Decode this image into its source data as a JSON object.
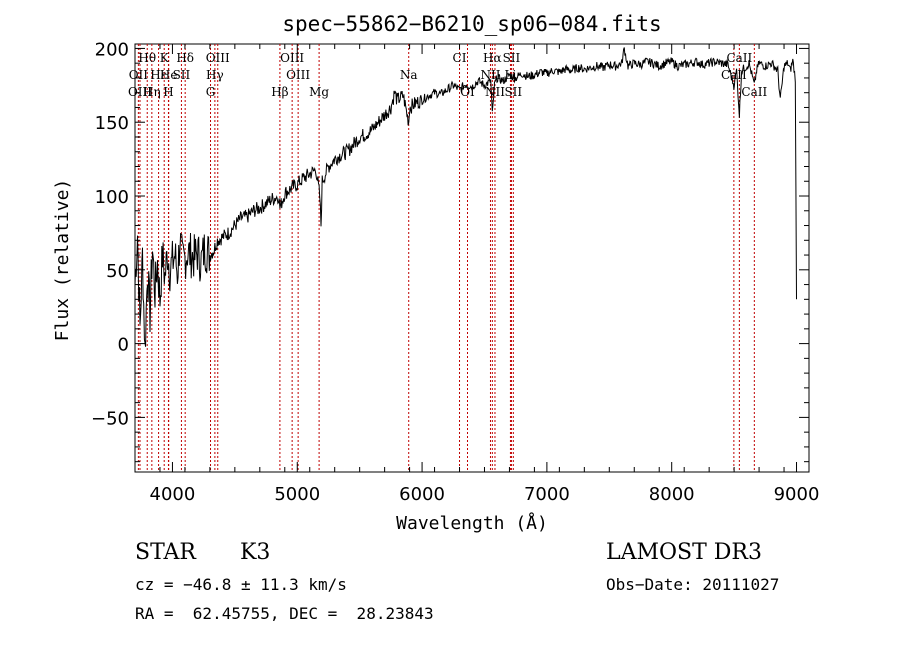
{
  "chart_data": {
    "type": "line",
    "title": "spec−55862−B6210_sp06−084.fits",
    "xlabel": "Wavelength (Å)",
    "ylabel": "Flux (relative)",
    "xlim": [
      3700,
      9100
    ],
    "ylim": [
      -87,
      203
    ],
    "xticks": [
      4000,
      5000,
      6000,
      7000,
      8000,
      9000
    ],
    "xtick_labels": [
      "4000",
      "5000",
      "6000",
      "7000",
      "8000",
      "9000"
    ],
    "yticks": [
      -50,
      0,
      50,
      100,
      150,
      200
    ],
    "ytick_labels": [
      "−50",
      "0",
      "50",
      "100",
      "150",
      "200"
    ],
    "series": [
      {
        "name": "flux",
        "x": [
          3700,
          3720,
          3740,
          3760,
          3780,
          3800,
          3820,
          3840,
          3860,
          3880,
          3900,
          3920,
          3940,
          3960,
          3980,
          4000,
          4020,
          4040,
          4060,
          4080,
          4100,
          4120,
          4150,
          4180,
          4200,
          4230,
          4260,
          4300,
          4330,
          4360,
          4400,
          4450,
          4500,
          4550,
          4600,
          4650,
          4700,
          4750,
          4800,
          4850,
          4861,
          4900,
          4950,
          5000,
          5050,
          5100,
          5150,
          5180,
          5190,
          5200,
          5250,
          5300,
          5350,
          5400,
          5450,
          5500,
          5550,
          5600,
          5650,
          5700,
          5750,
          5780,
          5800,
          5850,
          5893,
          5900,
          5950,
          6000,
          6050,
          6100,
          6150,
          6200,
          6250,
          6300,
          6350,
          6400,
          6450,
          6500,
          6550,
          6563,
          6580,
          6600,
          6650,
          6700,
          6750,
          6800,
          6850,
          6900,
          6950,
          7000,
          7050,
          7100,
          7150,
          7200,
          7250,
          7300,
          7350,
          7400,
          7450,
          7500,
          7550,
          7600,
          7620,
          7650,
          7700,
          7750,
          7800,
          7850,
          7900,
          7950,
          8000,
          8050,
          8100,
          8150,
          8200,
          8250,
          8300,
          8350,
          8400,
          8450,
          8498,
          8520,
          8542,
          8560,
          8600,
          8620,
          8662,
          8680,
          8700,
          8750,
          8800,
          8850,
          8870,
          8900,
          8930,
          8950,
          8970,
          8990,
          9000
        ],
        "y": [
          40,
          75,
          10,
          60,
          -5,
          50,
          20,
          65,
          35,
          55,
          30,
          60,
          45,
          62,
          50,
          55,
          60,
          48,
          70,
          55,
          58,
          62,
          60,
          58,
          62,
          55,
          65,
          60,
          63,
          70,
          72,
          75,
          80,
          85,
          86,
          90,
          92,
          95,
          98,
          100,
          92,
          102,
          105,
          108,
          112,
          115,
          118,
          100,
          80,
          110,
          120,
          125,
          128,
          130,
          135,
          140,
          142,
          145,
          150,
          155,
          160,
          170,
          165,
          168,
          150,
          160,
          163,
          165,
          168,
          170,
          169,
          172,
          175,
          172,
          176,
          174,
          178,
          175,
          178,
          155,
          175,
          180,
          178,
          182,
          180,
          183,
          181,
          182,
          184,
          183,
          185,
          184,
          186,
          185,
          187,
          186,
          187,
          188,
          187,
          189,
          188,
          190,
          200,
          188,
          190,
          189,
          191,
          190,
          188,
          190,
          191,
          188,
          189,
          190,
          191,
          189,
          190,
          191,
          190,
          189,
          175,
          185,
          155,
          185,
          188,
          190,
          175,
          185,
          190,
          188,
          190,
          185,
          165,
          188,
          190,
          185,
          192,
          180,
          30
        ]
      }
    ],
    "lines": [
      {
        "label": "Hθ",
        "wavelength": 3798,
        "row": 0
      },
      {
        "label": "K",
        "wavelength": 3934,
        "row": 0
      },
      {
        "label": "Hδ",
        "wavelength": 4102,
        "row": 0
      },
      {
        "label": "OIII",
        "wavelength": 4363,
        "row": 0
      },
      {
        "label": "OIII",
        "wavelength": 4959,
        "row": 0
      },
      {
        "label": "CI",
        "wavelength": 6300,
        "row": 0
      },
      {
        "label": "Hα",
        "wavelength": 6563,
        "row": 0
      },
      {
        "label": "SII",
        "wavelength": 6716,
        "row": 0
      },
      {
        "label": "CaII",
        "wavelength": 8542,
        "row": 0
      },
      {
        "label": "OII",
        "wavelength": 3727,
        "row": 1
      },
      {
        "label": "Hε",
        "wavelength": 3889,
        "row": 1
      },
      {
        "label": "He",
        "wavelength": 3970,
        "row": 1
      },
      {
        "label": "SII",
        "wavelength": 4072,
        "row": 1
      },
      {
        "label": "Hγ",
        "wavelength": 4340,
        "row": 1
      },
      {
        "label": "OIII",
        "wavelength": 5007,
        "row": 1
      },
      {
        "label": "Na",
        "wavelength": 5893,
        "row": 1
      },
      {
        "label": "NII",
        "wavelength": 6548,
        "row": 1
      },
      {
        "label": "Li",
        "wavelength": 6708,
        "row": 1
      },
      {
        "label": "CaII",
        "wavelength": 8498,
        "row": 1
      },
      {
        "label": "OIII",
        "wavelength": 3740,
        "row": 2
      },
      {
        "label": "Hη",
        "wavelength": 3835,
        "row": 2
      },
      {
        "label": "H",
        "wavelength": 3968,
        "row": 2
      },
      {
        "label": "G",
        "wavelength": 4305,
        "row": 2
      },
      {
        "label": "Hβ",
        "wavelength": 4861,
        "row": 2
      },
      {
        "label": "Mg",
        "wavelength": 5175,
        "row": 2
      },
      {
        "label": "OI",
        "wavelength": 6364,
        "row": 2
      },
      {
        "label": "NII",
        "wavelength": 6584,
        "row": 2
      },
      {
        "label": "SII",
        "wavelength": 6731,
        "row": 2
      },
      {
        "label": "CaII",
        "wavelength": 8662,
        "row": 2
      }
    ]
  },
  "info": {
    "object_class": "STAR",
    "subclass": "K3",
    "survey": "LAMOST DR3",
    "velocity": "cz = −46.8 ± 11.3 km/s",
    "obs_date": "Obs−Date: 20111027",
    "coords": "RA =  62.45755, DEC =  28.23843"
  },
  "colors": {
    "line_marker": "#c00000",
    "spectrum": "#000000",
    "axes": "#000000"
  }
}
